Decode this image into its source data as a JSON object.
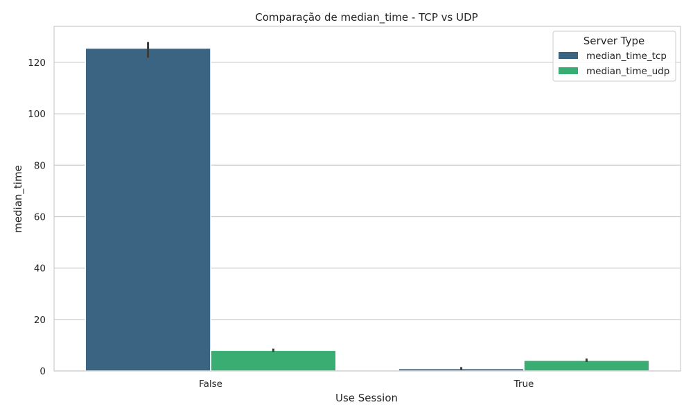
{
  "chart_data": {
    "type": "bar",
    "title": "Comparação de median_time - TCP vs UDP",
    "xlabel": "Use Session",
    "ylabel": "median_time",
    "categories": [
      "False",
      "True"
    ],
    "ylim": [
      0,
      134
    ],
    "yticks": [
      0,
      20,
      40,
      60,
      80,
      100,
      120
    ],
    "grid": true,
    "legend": {
      "title": "Server Type",
      "placement": "top-right"
    },
    "series": [
      {
        "name": "median_time_tcp",
        "color": "#3b6482",
        "values": [
          125.5,
          0.9
        ],
        "err_low": [
          121.8,
          0.4
        ],
        "err_high": [
          127.9,
          1.5
        ]
      },
      {
        "name": "median_time_udp",
        "color": "#3aae72",
        "values": [
          8.0,
          4.1
        ],
        "err_low": [
          7.4,
          3.5
        ],
        "err_high": [
          8.7,
          4.8
        ]
      }
    ]
  }
}
